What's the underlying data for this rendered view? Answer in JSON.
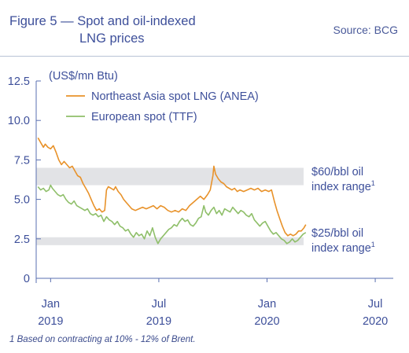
{
  "header": {
    "title_line1": "Figure 5 — Spot and oil-indexed",
    "title_line2": "LNG prices",
    "source": "Source: BCG"
  },
  "footnote": "1 Based on contracting at 10% - 12% of Brent.",
  "colors": {
    "accent": "#3d4f9a",
    "anea": "#e8922a",
    "ttf": "#8fbf6a",
    "band": "#e2e3e6",
    "axis": "#5a6fb0"
  },
  "chart_data": {
    "type": "line",
    "unit_label": "(US$/mn Btu)",
    "ylim": [
      0,
      12.5
    ],
    "y_ticks": [
      "0",
      "2.5",
      "5.0",
      "7.5",
      "10.0",
      "12.5"
    ],
    "y_tick_values": [
      0,
      2.5,
      5.0,
      7.5,
      10.0,
      12.5
    ],
    "x_ticks": [
      {
        "t": 0,
        "month": "Jan",
        "year": "2019"
      },
      {
        "t": 6,
        "month": "Jul",
        "year": "2019"
      },
      {
        "t": 12,
        "month": "Jan",
        "year": "2020"
      },
      {
        "t": 18,
        "month": "Jul",
        "year": "2020"
      }
    ],
    "xlim": [
      -0.8,
      19.0
    ],
    "legend_position": "top-left",
    "grid": false,
    "bands": [
      {
        "name": "$60/bbl oil index range",
        "low": 5.9,
        "high": 7.0,
        "label_line1": "$60/bbl oil",
        "label_line2": "index range",
        "sup": "1"
      },
      {
        "name": "$25/bbl oil index range",
        "low": 2.1,
        "high": 2.6,
        "label_line1": "$25/bbl oil",
        "label_line2": "index range",
        "sup": "1"
      }
    ],
    "series": [
      {
        "name": "Northeast Asia spot LNG (ANEA)",
        "color": "#e8922a",
        "points": [
          [
            -0.7,
            8.9
          ],
          [
            -0.55,
            8.6
          ],
          [
            -0.4,
            8.3
          ],
          [
            -0.3,
            8.5
          ],
          [
            -0.15,
            8.3
          ],
          [
            0.0,
            8.2
          ],
          [
            0.15,
            8.4
          ],
          [
            0.3,
            8.0
          ],
          [
            0.45,
            7.5
          ],
          [
            0.6,
            7.2
          ],
          [
            0.75,
            7.4
          ],
          [
            0.9,
            7.2
          ],
          [
            1.05,
            7.0
          ],
          [
            1.2,
            7.1
          ],
          [
            1.35,
            6.8
          ],
          [
            1.5,
            6.5
          ],
          [
            1.65,
            6.4
          ],
          [
            1.8,
            6.0
          ],
          [
            1.95,
            5.7
          ],
          [
            2.1,
            5.4
          ],
          [
            2.25,
            5.0
          ],
          [
            2.4,
            4.6
          ],
          [
            2.55,
            4.3
          ],
          [
            2.7,
            4.4
          ],
          [
            2.85,
            4.2
          ],
          [
            3.0,
            4.3
          ],
          [
            3.1,
            5.6
          ],
          [
            3.2,
            5.8
          ],
          [
            3.35,
            5.7
          ],
          [
            3.5,
            5.6
          ],
          [
            3.6,
            5.8
          ],
          [
            3.75,
            5.5
          ],
          [
            3.9,
            5.3
          ],
          [
            4.05,
            5.0
          ],
          [
            4.2,
            4.8
          ],
          [
            4.35,
            4.6
          ],
          [
            4.5,
            4.4
          ],
          [
            4.7,
            4.3
          ],
          [
            4.9,
            4.4
          ],
          [
            5.1,
            4.5
          ],
          [
            5.3,
            4.4
          ],
          [
            5.5,
            4.5
          ],
          [
            5.7,
            4.6
          ],
          [
            5.9,
            4.4
          ],
          [
            6.1,
            4.6
          ],
          [
            6.3,
            4.5
          ],
          [
            6.5,
            4.3
          ],
          [
            6.7,
            4.2
          ],
          [
            6.9,
            4.3
          ],
          [
            7.1,
            4.2
          ],
          [
            7.3,
            4.4
          ],
          [
            7.5,
            4.3
          ],
          [
            7.7,
            4.6
          ],
          [
            7.9,
            4.8
          ],
          [
            8.1,
            5.0
          ],
          [
            8.3,
            5.2
          ],
          [
            8.5,
            5.0
          ],
          [
            8.7,
            5.3
          ],
          [
            8.85,
            5.6
          ],
          [
            9.0,
            6.5
          ],
          [
            9.05,
            7.1
          ],
          [
            9.15,
            6.6
          ],
          [
            9.3,
            6.3
          ],
          [
            9.45,
            6.1
          ],
          [
            9.6,
            6.0
          ],
          [
            9.75,
            5.8
          ],
          [
            9.9,
            5.7
          ],
          [
            10.05,
            5.6
          ],
          [
            10.2,
            5.7
          ],
          [
            10.35,
            5.5
          ],
          [
            10.5,
            5.6
          ],
          [
            10.7,
            5.5
          ],
          [
            10.9,
            5.6
          ],
          [
            11.1,
            5.7
          ],
          [
            11.3,
            5.6
          ],
          [
            11.5,
            5.7
          ],
          [
            11.7,
            5.5
          ],
          [
            11.9,
            5.6
          ],
          [
            12.1,
            5.5
          ],
          [
            12.25,
            5.6
          ],
          [
            12.4,
            4.9
          ],
          [
            12.55,
            4.3
          ],
          [
            12.7,
            3.8
          ],
          [
            12.85,
            3.3
          ],
          [
            13.0,
            2.9
          ],
          [
            13.15,
            2.7
          ],
          [
            13.3,
            2.8
          ],
          [
            13.45,
            2.7
          ],
          [
            13.6,
            2.8
          ],
          [
            13.75,
            3.0
          ],
          [
            13.9,
            3.0
          ],
          [
            14.05,
            3.2
          ],
          [
            14.15,
            3.4
          ]
        ]
      },
      {
        "name": "European spot (TTF)",
        "color": "#8fbf6a",
        "points": [
          [
            -0.7,
            5.8
          ],
          [
            -0.55,
            5.6
          ],
          [
            -0.4,
            5.7
          ],
          [
            -0.25,
            5.5
          ],
          [
            -0.1,
            5.6
          ],
          [
            0.0,
            5.9
          ],
          [
            0.1,
            5.7
          ],
          [
            0.25,
            5.5
          ],
          [
            0.4,
            5.3
          ],
          [
            0.55,
            5.2
          ],
          [
            0.7,
            5.3
          ],
          [
            0.85,
            5.0
          ],
          [
            1.0,
            4.8
          ],
          [
            1.15,
            4.7
          ],
          [
            1.3,
            4.9
          ],
          [
            1.45,
            4.6
          ],
          [
            1.6,
            4.5
          ],
          [
            1.75,
            4.4
          ],
          [
            1.9,
            4.3
          ],
          [
            2.05,
            4.4
          ],
          [
            2.2,
            4.1
          ],
          [
            2.35,
            4.0
          ],
          [
            2.5,
            4.1
          ],
          [
            2.65,
            3.9
          ],
          [
            2.8,
            4.0
          ],
          [
            2.95,
            3.6
          ],
          [
            3.1,
            3.9
          ],
          [
            3.25,
            3.7
          ],
          [
            3.4,
            3.6
          ],
          [
            3.55,
            3.4
          ],
          [
            3.7,
            3.6
          ],
          [
            3.85,
            3.3
          ],
          [
            4.0,
            3.2
          ],
          [
            4.15,
            3.0
          ],
          [
            4.3,
            3.1
          ],
          [
            4.45,
            2.8
          ],
          [
            4.6,
            2.6
          ],
          [
            4.75,
            2.9
          ],
          [
            4.9,
            2.7
          ],
          [
            5.05,
            2.8
          ],
          [
            5.2,
            2.5
          ],
          [
            5.35,
            3.0
          ],
          [
            5.5,
            2.7
          ],
          [
            5.65,
            3.2
          ],
          [
            5.8,
            2.6
          ],
          [
            5.95,
            2.2
          ],
          [
            6.1,
            2.5
          ],
          [
            6.25,
            2.7
          ],
          [
            6.4,
            2.9
          ],
          [
            6.55,
            3.1
          ],
          [
            6.7,
            3.2
          ],
          [
            6.85,
            3.4
          ],
          [
            7.0,
            3.3
          ],
          [
            7.15,
            3.6
          ],
          [
            7.3,
            3.8
          ],
          [
            7.45,
            3.6
          ],
          [
            7.6,
            3.7
          ],
          [
            7.75,
            3.4
          ],
          [
            7.9,
            3.3
          ],
          [
            8.05,
            3.5
          ],
          [
            8.2,
            3.8
          ],
          [
            8.35,
            3.9
          ],
          [
            8.5,
            4.6
          ],
          [
            8.6,
            4.2
          ],
          [
            8.75,
            4.0
          ],
          [
            8.9,
            4.3
          ],
          [
            9.05,
            4.5
          ],
          [
            9.2,
            4.1
          ],
          [
            9.35,
            4.3
          ],
          [
            9.5,
            4.0
          ],
          [
            9.65,
            4.4
          ],
          [
            9.8,
            4.3
          ],
          [
            9.95,
            4.2
          ],
          [
            10.1,
            4.5
          ],
          [
            10.25,
            4.3
          ],
          [
            10.4,
            4.1
          ],
          [
            10.55,
            4.3
          ],
          [
            10.7,
            4.2
          ],
          [
            10.85,
            4.0
          ],
          [
            11.0,
            3.9
          ],
          [
            11.15,
            4.1
          ],
          [
            11.3,
            3.7
          ],
          [
            11.45,
            3.5
          ],
          [
            11.6,
            3.3
          ],
          [
            11.75,
            3.5
          ],
          [
            11.9,
            3.6
          ],
          [
            12.05,
            3.3
          ],
          [
            12.2,
            3.0
          ],
          [
            12.35,
            2.8
          ],
          [
            12.5,
            2.9
          ],
          [
            12.65,
            2.7
          ],
          [
            12.8,
            2.5
          ],
          [
            12.95,
            2.4
          ],
          [
            13.1,
            2.2
          ],
          [
            13.25,
            2.3
          ],
          [
            13.4,
            2.5
          ],
          [
            13.55,
            2.3
          ],
          [
            13.7,
            2.4
          ],
          [
            13.85,
            2.6
          ],
          [
            14.0,
            2.8
          ],
          [
            14.15,
            2.9
          ]
        ]
      }
    ]
  }
}
